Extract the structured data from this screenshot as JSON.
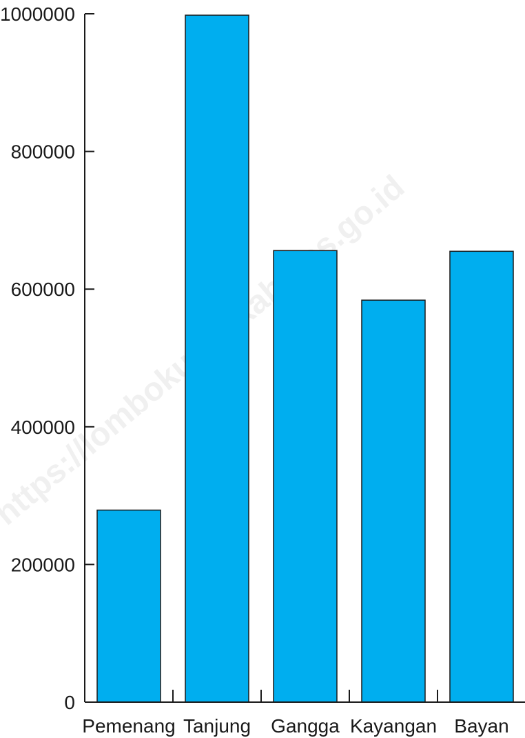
{
  "watermark": "https://lombokutarakab.bps.go.id",
  "colors": {
    "bar_fill": "#00AEEF",
    "bar_stroke": "#1a1a1a",
    "axis": "#1a1a1a"
  },
  "chart_data": {
    "type": "bar",
    "title": "",
    "xlabel": "",
    "ylabel": "",
    "categories": [
      "Pemenang",
      "Tanjung",
      "Gangga",
      "Kayangan",
      "Bayan"
    ],
    "values": [
      279000,
      998000,
      656000,
      584000,
      655000
    ],
    "ylim": [
      0,
      1000000
    ],
    "yticks": [
      0,
      200000,
      400000,
      600000,
      800000,
      1000000
    ],
    "ytick_labels": [
      "0",
      "200000",
      "400000",
      "600000",
      "800000",
      "1000000"
    ],
    "grid": false,
    "legend": "none"
  }
}
